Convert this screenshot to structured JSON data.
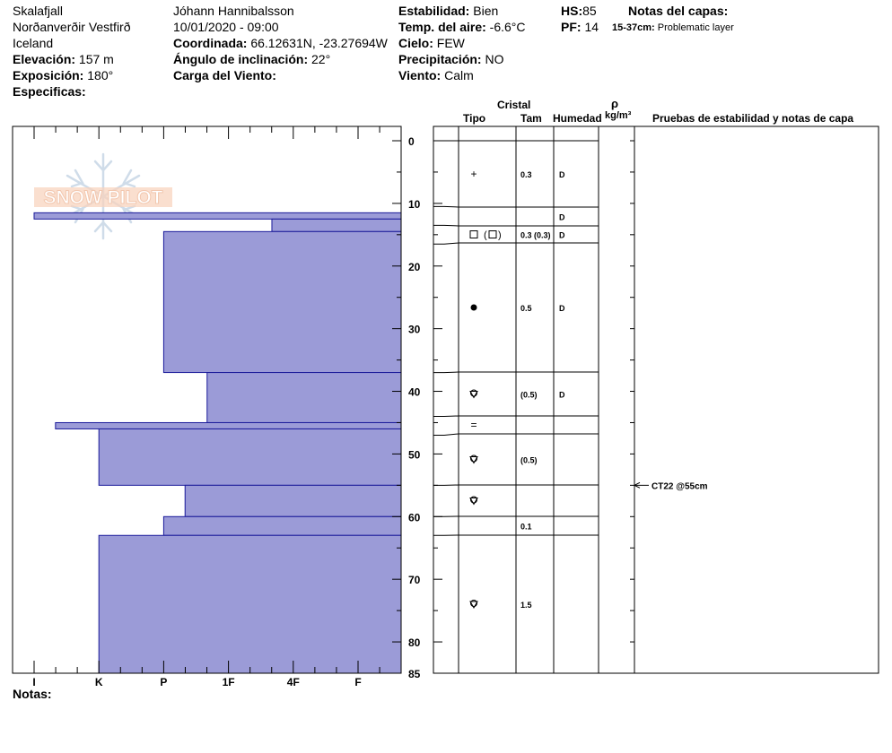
{
  "header": {
    "location": "Skalafjall",
    "region": "Norðanverðir Vestfirð",
    "country": "Iceland",
    "elevation_label": "Elevación:",
    "elevation_value": "157 m",
    "aspect_label": "Exposición:",
    "aspect_value": "180°",
    "specifics_label": "Especificas:",
    "observer": "Jóhann Hannibalsson",
    "datetime": "10/01/2020 - 09:00",
    "coords_label": "Coordinada:",
    "coords_value": "66.12631N, -23.27694W",
    "slope_label": "Ángulo de inclinación:",
    "slope_value": "22°",
    "wind_load_label": "Carga del Viento:",
    "stability_label": "Estabilidad:",
    "stability_value": "Bien",
    "air_temp_label": "Temp. del aire:",
    "air_temp_value": "-6.6°C",
    "sky_label": "Cielo:",
    "sky_value": "FEW",
    "precip_label": "Precipitación:",
    "precip_value": "NO",
    "wind_label": "Viento:",
    "wind_value": "Calm",
    "hs_label": "HS:",
    "hs_value": "85",
    "pf_label": "PF:",
    "pf_value": "14",
    "notes_layers_label": "Notas del capas:",
    "layer_note_range": "15-37cm:",
    "layer_note_text": "Problematic layer"
  },
  "logo_text": "SNOW PILOT",
  "table_headers": {
    "cristal": "Cristal",
    "tipo": "Tipo",
    "tam": "Tam",
    "humedad": "Humedad",
    "rho": "ρ",
    "density_unit": "kg/m³",
    "tests": "Pruebas de estabilidad y notas de capa"
  },
  "notes_label": "Notas:",
  "stability_test": {
    "text": "CT22 @55cm",
    "depth": 55
  },
  "colors": {
    "hardness_fill": "#9b9bd7",
    "hardness_stroke": "#1a1a9a"
  },
  "chart_data": {
    "type": "snow_profile",
    "ylim": [
      0,
      85
    ],
    "y_ticks": [
      0,
      10,
      20,
      30,
      40,
      50,
      60,
      70,
      80,
      85
    ],
    "hardness_scale": [
      "I",
      "K",
      "P",
      "1F",
      "4F",
      "F"
    ],
    "hardness_layers": [
      {
        "top": 0,
        "bottom": 11.5,
        "hardness": 5.67
      },
      {
        "top": 11.5,
        "bottom": 12.5,
        "hardness": 0
      },
      {
        "top": 12.5,
        "bottom": 14.5,
        "hardness": 3.67
      },
      {
        "top": 14.5,
        "bottom": 37,
        "hardness": 2
      },
      {
        "top": 37,
        "bottom": 45,
        "hardness": 2.67
      },
      {
        "top": 45,
        "bottom": 46,
        "hardness": 0.33
      },
      {
        "top": 46,
        "bottom": 55,
        "hardness": 1
      },
      {
        "top": 55,
        "bottom": 60,
        "hardness": 2.33
      },
      {
        "top": 60,
        "bottom": 63,
        "hardness": 2
      },
      {
        "top": 63,
        "bottom": 85,
        "hardness": 1
      }
    ],
    "layers": [
      {
        "top": 0,
        "bottom": 10.5,
        "symbol": "plus",
        "size": "0.3",
        "moisture": "D"
      },
      {
        "top": 10.5,
        "bottom": 13.5,
        "symbol": "",
        "size": "",
        "moisture": "D"
      },
      {
        "top": 13.5,
        "bottom": 16.5,
        "symbol": "square-paren",
        "size": "0.3 (0.3)",
        "moisture": "D"
      },
      {
        "top": 16.5,
        "bottom": 37,
        "symbol": "dot",
        "size": "0.5",
        "moisture": "D"
      },
      {
        "top": 37,
        "bottom": 44,
        "symbol": "cup",
        "size": "(0.5)",
        "moisture": "D"
      },
      {
        "top": 44,
        "bottom": 47,
        "symbol": "equals",
        "size": "",
        "moisture": ""
      },
      {
        "top": 47,
        "bottom": 55,
        "symbol": "cup",
        "size": "(0.5)",
        "moisture": ""
      },
      {
        "top": 55,
        "bottom": 60,
        "symbol": "cup",
        "size": "",
        "moisture": ""
      },
      {
        "top": 60,
        "bottom": 63,
        "symbol": "",
        "size": "0.1",
        "moisture": ""
      },
      {
        "top": 63,
        "bottom": 85,
        "symbol": "cup",
        "size": "1.5",
        "moisture": ""
      }
    ]
  }
}
